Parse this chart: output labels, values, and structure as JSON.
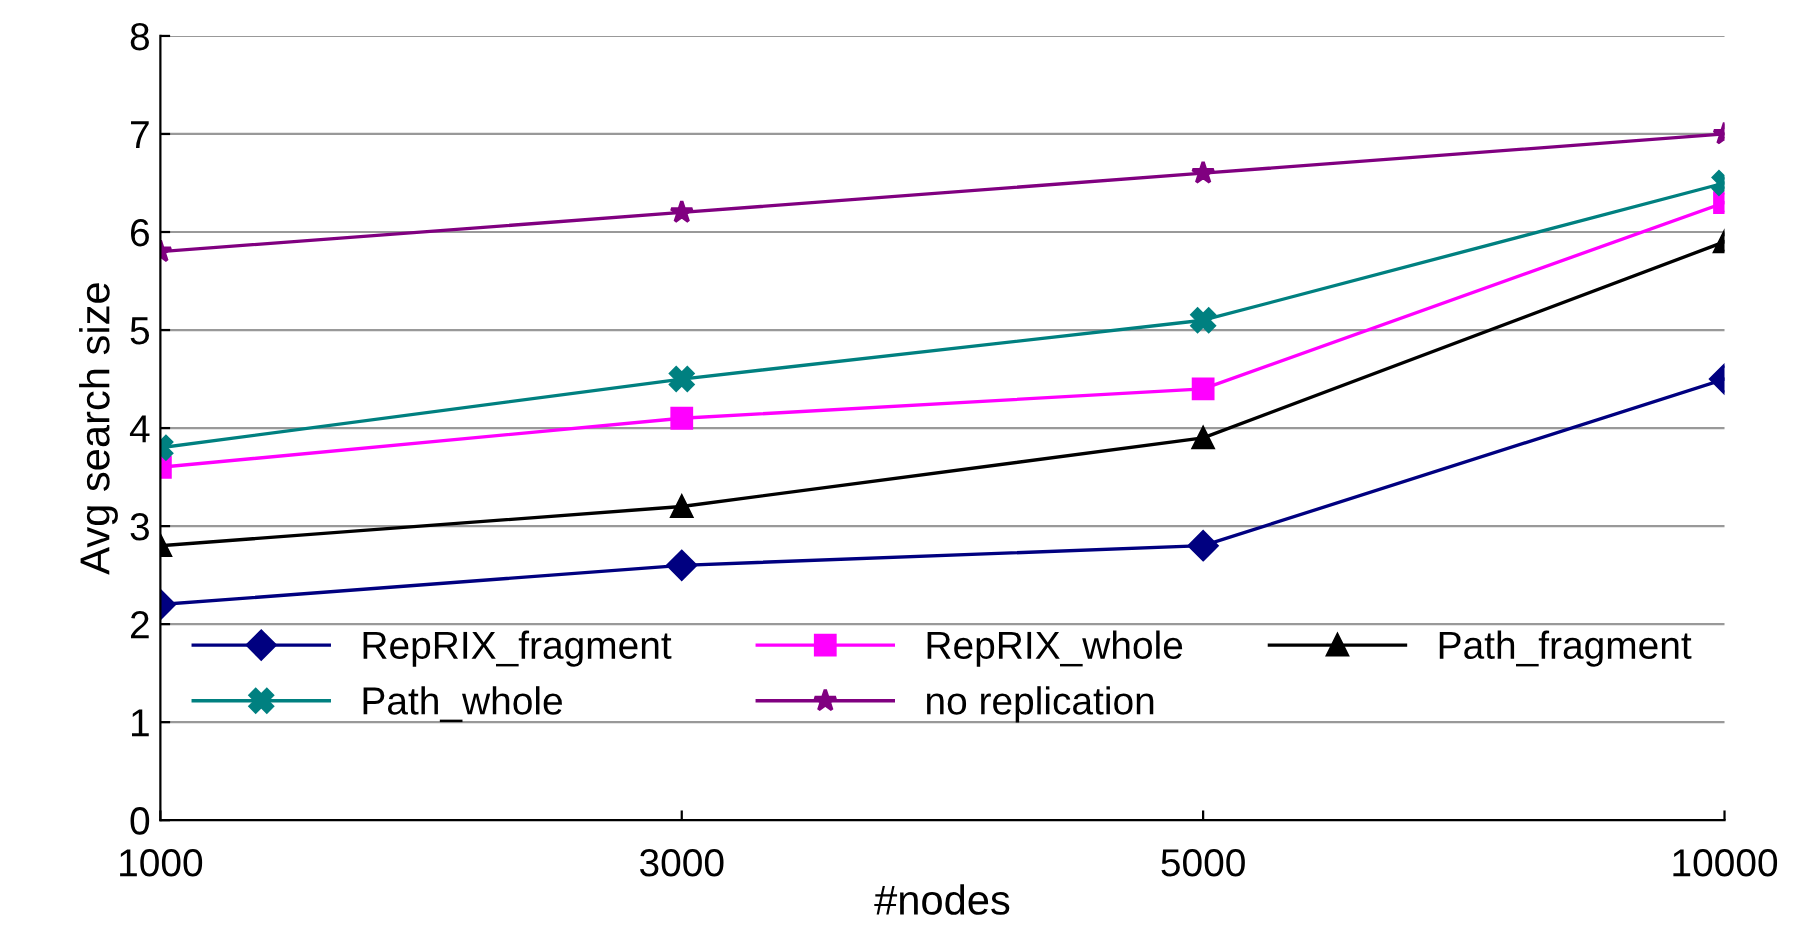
{
  "chart_data": {
    "type": "line",
    "xlabel": "#nodes",
    "ylabel": "Avg search size",
    "categories": [
      "1000",
      "3000",
      "5000",
      "10000"
    ],
    "series": [
      {
        "name": "RepRIX_fragment",
        "color": "#000080",
        "marker": "diamond",
        "values": [
          2.2,
          2.6,
          2.8,
          4.5
        ]
      },
      {
        "name": "RepRIX_whole",
        "color": "#ff00ff",
        "marker": "square",
        "values": [
          3.6,
          4.1,
          4.4,
          6.3
        ]
      },
      {
        "name": "Path_fragment",
        "color": "#000000",
        "marker": "triangle",
        "values": [
          2.8,
          3.2,
          3.9,
          5.9
        ]
      },
      {
        "name": "Path_whole",
        "color": "#008080",
        "marker": "cross",
        "values": [
          3.8,
          4.5,
          5.1,
          6.5
        ]
      },
      {
        "name": "no replication",
        "color": "#800080",
        "marker": "star",
        "values": [
          5.8,
          6.2,
          6.6,
          7.0
        ]
      }
    ],
    "ylim": [
      0,
      8
    ],
    "yticks": [
      0,
      1,
      2,
      3,
      4,
      5,
      6,
      7,
      8
    ],
    "grid": "y",
    "legend": "bottom"
  }
}
